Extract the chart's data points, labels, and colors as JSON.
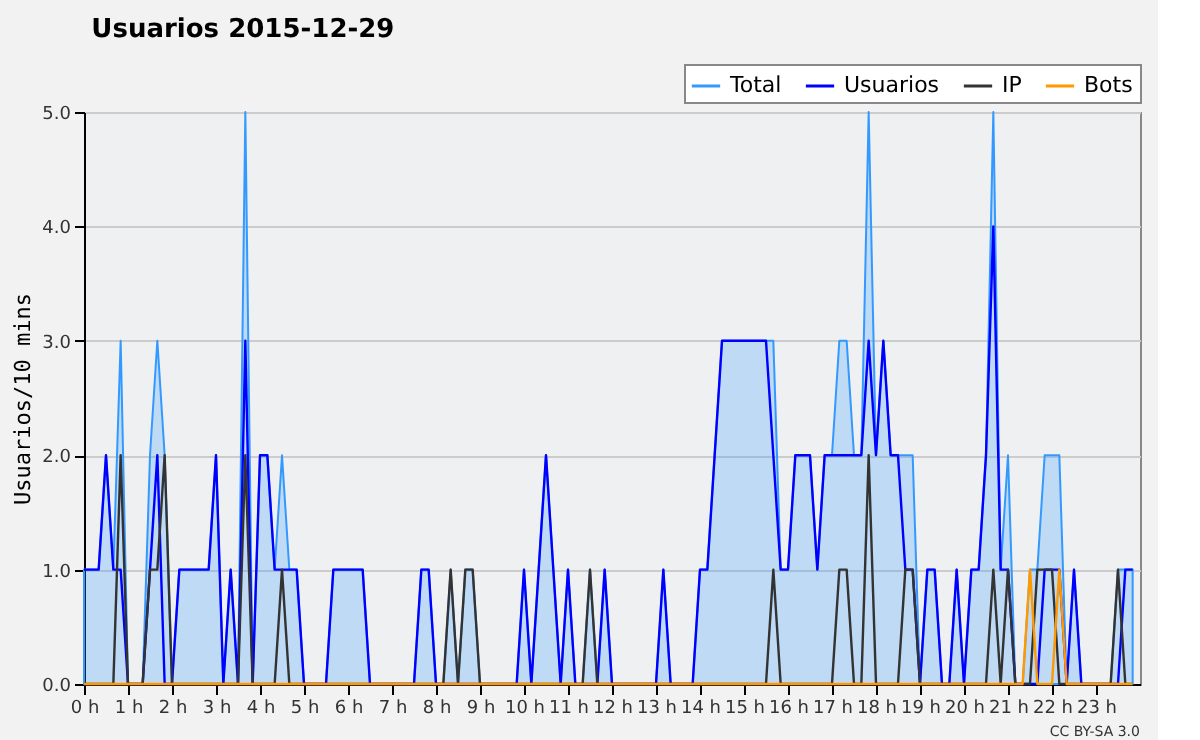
{
  "chart_data": {
    "type": "line",
    "title": "Usuarios  2015-12-29",
    "ylabel": "Usuarios/10 mins",
    "annotations": [
      "CC BY-SA 3.0"
    ],
    "x": [
      0,
      0.1667,
      0.3333,
      0.5,
      0.6667,
      0.8333,
      1,
      1.1667,
      1.3333,
      1.5,
      1.6667,
      1.8333,
      2,
      2.1667,
      2.3333,
      2.5,
      2.6667,
      2.8333,
      3,
      3.1667,
      3.3333,
      3.5,
      3.6667,
      3.8333,
      4,
      4.1667,
      4.3333,
      4.5,
      4.6667,
      4.8333,
      5,
      5.1667,
      5.3333,
      5.5,
      5.6667,
      5.8333,
      6,
      6.1667,
      6.3333,
      6.5,
      6.6667,
      6.8333,
      7,
      7.1667,
      7.3333,
      7.5,
      7.6667,
      7.8333,
      8,
      8.1667,
      8.3333,
      8.5,
      8.6667,
      8.8333,
      9,
      9.1667,
      9.3333,
      9.5,
      9.6667,
      9.8333,
      10,
      10.1667,
      10.3333,
      10.5,
      10.6667,
      10.8333,
      11,
      11.1667,
      11.3333,
      11.5,
      11.6667,
      11.8333,
      12,
      12.1667,
      12.3333,
      12.5,
      12.6667,
      12.8333,
      13,
      13.1667,
      13.3333,
      13.5,
      13.6667,
      13.8333,
      14,
      14.1667,
      14.3333,
      14.5,
      14.6667,
      14.8333,
      15,
      15.1667,
      15.3333,
      15.5,
      15.6667,
      15.8333,
      16,
      16.1667,
      16.3333,
      16.5,
      16.6667,
      16.8333,
      17,
      17.1667,
      17.3333,
      17.5,
      17.6667,
      17.8333,
      18,
      18.1667,
      18.3333,
      18.5,
      18.6667,
      18.8333,
      19,
      19.1667,
      19.3333,
      19.5,
      19.6667,
      19.8333,
      20,
      20.1667,
      20.3333,
      20.5,
      20.6667,
      20.8333,
      21,
      21.1667,
      21.3333,
      21.5,
      21.6667,
      21.8333,
      22,
      22.1667,
      22.3333,
      22.5,
      22.6667,
      22.8333,
      23,
      23.1667,
      23.3333,
      23.5,
      23.6667,
      23.8333
    ],
    "xlim": [
      0,
      24
    ],
    "xticks": [
      {
        "value": 0,
        "label": "0 h"
      },
      {
        "value": 1,
        "label": "1 h"
      },
      {
        "value": 2,
        "label": "2 h"
      },
      {
        "value": 3,
        "label": "3 h"
      },
      {
        "value": 4,
        "label": "4 h"
      },
      {
        "value": 5,
        "label": "5 h"
      },
      {
        "value": 6,
        "label": "6 h"
      },
      {
        "value": 7,
        "label": "7 h"
      },
      {
        "value": 8,
        "label": "8 h"
      },
      {
        "value": 9,
        "label": "9 h"
      },
      {
        "value": 10,
        "label": "10 h"
      },
      {
        "value": 11,
        "label": "11 h"
      },
      {
        "value": 12,
        "label": "12 h"
      },
      {
        "value": 13,
        "label": "13 h"
      },
      {
        "value": 14,
        "label": "14 h"
      },
      {
        "value": 15,
        "label": "15 h"
      },
      {
        "value": 16,
        "label": "16 h"
      },
      {
        "value": 17,
        "label": "17 h"
      },
      {
        "value": 18,
        "label": "18 h"
      },
      {
        "value": 19,
        "label": "19 h"
      },
      {
        "value": 20,
        "label": "20 h"
      },
      {
        "value": 21,
        "label": "21 h"
      },
      {
        "value": 22,
        "label": "22 h"
      },
      {
        "value": 23,
        "label": "23 h"
      }
    ],
    "ylim": [
      0,
      5
    ],
    "yticks": [
      {
        "value": 0,
        "label": "0.0"
      },
      {
        "value": 1,
        "label": "1.0"
      },
      {
        "value": 2,
        "label": "2.0"
      },
      {
        "value": 3,
        "label": "3.0"
      },
      {
        "value": 4,
        "label": "4.0"
      },
      {
        "value": 5,
        "label": "5.0"
      }
    ],
    "grid": "y",
    "legend": "top right",
    "series": [
      {
        "name": "Total",
        "type": "area",
        "color": "#3399ff",
        "values": [
          1,
          1,
          1,
          2,
          1,
          3,
          0,
          0,
          0,
          2,
          3,
          2,
          0,
          1,
          1,
          1,
          1,
          1,
          2,
          0,
          1,
          0,
          5,
          0,
          2,
          2,
          1,
          2,
          1,
          1,
          0,
          0,
          0,
          0,
          1,
          1,
          1,
          1,
          1,
          0,
          0,
          0,
          0,
          0,
          0,
          0,
          1,
          1,
          0,
          0,
          1,
          0,
          1,
          1,
          0,
          0,
          0,
          0,
          0,
          0,
          1,
          0,
          1,
          2,
          1,
          0,
          1,
          0,
          0,
          1,
          0,
          1,
          0,
          0,
          0,
          0,
          0,
          0,
          0,
          1,
          0,
          0,
          0,
          0,
          1,
          1,
          2,
          3,
          3,
          3,
          3,
          3,
          3,
          3,
          3,
          1,
          1,
          2,
          2,
          2,
          1,
          2,
          2,
          3,
          3,
          2,
          2,
          5,
          2,
          3,
          2,
          2,
          2,
          2,
          0,
          1,
          1,
          0,
          0,
          1,
          0,
          1,
          1,
          2,
          5,
          1,
          2,
          0,
          0,
          1,
          1,
          2,
          2,
          2,
          0,
          1,
          0,
          0,
          0,
          0,
          0,
          1,
          1,
          1
        ]
      },
      {
        "name": "Usuarios",
        "color": "#0000ff",
        "values": [
          1,
          1,
          1,
          2,
          1,
          1,
          0,
          0,
          0,
          1,
          2,
          0,
          0,
          1,
          1,
          1,
          1,
          1,
          2,
          0,
          1,
          0,
          3,
          0,
          2,
          2,
          1,
          1,
          1,
          1,
          0,
          0,
          0,
          0,
          1,
          1,
          1,
          1,
          1,
          0,
          0,
          0,
          0,
          0,
          0,
          0,
          1,
          1,
          0,
          0,
          0,
          0,
          0,
          0,
          0,
          0,
          0,
          0,
          0,
          0,
          1,
          0,
          1,
          2,
          1,
          0,
          1,
          0,
          0,
          0,
          0,
          1,
          0,
          0,
          0,
          0,
          0,
          0,
          0,
          1,
          0,
          0,
          0,
          0,
          1,
          1,
          2,
          3,
          3,
          3,
          3,
          3,
          3,
          3,
          2,
          1,
          1,
          2,
          2,
          2,
          1,
          2,
          2,
          2,
          2,
          2,
          2,
          3,
          2,
          3,
          2,
          2,
          1,
          1,
          0,
          1,
          1,
          0,
          0,
          1,
          0,
          1,
          1,
          2,
          4,
          1,
          1,
          0,
          0,
          0,
          0,
          1,
          1,
          1,
          0,
          1,
          0,
          0,
          0,
          0,
          0,
          0,
          1,
          1
        ]
      },
      {
        "name": "IP",
        "color": "#333333",
        "values": [
          0,
          0,
          0,
          0,
          0,
          2,
          0,
          0,
          0,
          1,
          1,
          2,
          0,
          0,
          0,
          0,
          0,
          0,
          0,
          0,
          0,
          0,
          2,
          0,
          0,
          0,
          0,
          1,
          0,
          0,
          0,
          0,
          0,
          0,
          0,
          0,
          0,
          0,
          0,
          0,
          0,
          0,
          0,
          0,
          0,
          0,
          0,
          0,
          0,
          0,
          1,
          0,
          1,
          1,
          0,
          0,
          0,
          0,
          0,
          0,
          0,
          0,
          0,
          0,
          0,
          0,
          0,
          0,
          0,
          1,
          0,
          0,
          0,
          0,
          0,
          0,
          0,
          0,
          0,
          0,
          0,
          0,
          0,
          0,
          0,
          0,
          0,
          0,
          0,
          0,
          0,
          0,
          0,
          0,
          1,
          0,
          0,
          0,
          0,
          0,
          0,
          0,
          0,
          1,
          1,
          0,
          0,
          2,
          0,
          0,
          0,
          0,
          1,
          1,
          0,
          0,
          0,
          0,
          0,
          0,
          0,
          0,
          0,
          0,
          1,
          0,
          1,
          0,
          0,
          0,
          1,
          1,
          1,
          0,
          0,
          0,
          0,
          0,
          0,
          0,
          0,
          1,
          0,
          0
        ]
      },
      {
        "name": "Bots",
        "color": "#ff9900",
        "values": [
          0,
          0,
          0,
          0,
          0,
          0,
          0,
          0,
          0,
          0,
          0,
          0,
          0,
          0,
          0,
          0,
          0,
          0,
          0,
          0,
          0,
          0,
          0,
          0,
          0,
          0,
          0,
          0,
          0,
          0,
          0,
          0,
          0,
          0,
          0,
          0,
          0,
          0,
          0,
          0,
          0,
          0,
          0,
          0,
          0,
          0,
          0,
          0,
          0,
          0,
          0,
          0,
          0,
          0,
          0,
          0,
          0,
          0,
          0,
          0,
          0,
          0,
          0,
          0,
          0,
          0,
          0,
          0,
          0,
          0,
          0,
          0,
          0,
          0,
          0,
          0,
          0,
          0,
          0,
          0,
          0,
          0,
          0,
          0,
          0,
          0,
          0,
          0,
          0,
          0,
          0,
          0,
          0,
          0,
          0,
          0,
          0,
          0,
          0,
          0,
          0,
          0,
          0,
          0,
          0,
          0,
          0,
          0,
          0,
          0,
          0,
          0,
          0,
          0,
          0,
          0,
          0,
          0,
          0,
          0,
          0,
          0,
          0,
          0,
          0,
          0,
          0,
          0,
          0,
          1,
          0,
          0,
          0,
          1,
          0,
          0,
          0,
          0,
          0,
          0,
          0,
          0,
          0,
          0
        ]
      }
    ]
  }
}
